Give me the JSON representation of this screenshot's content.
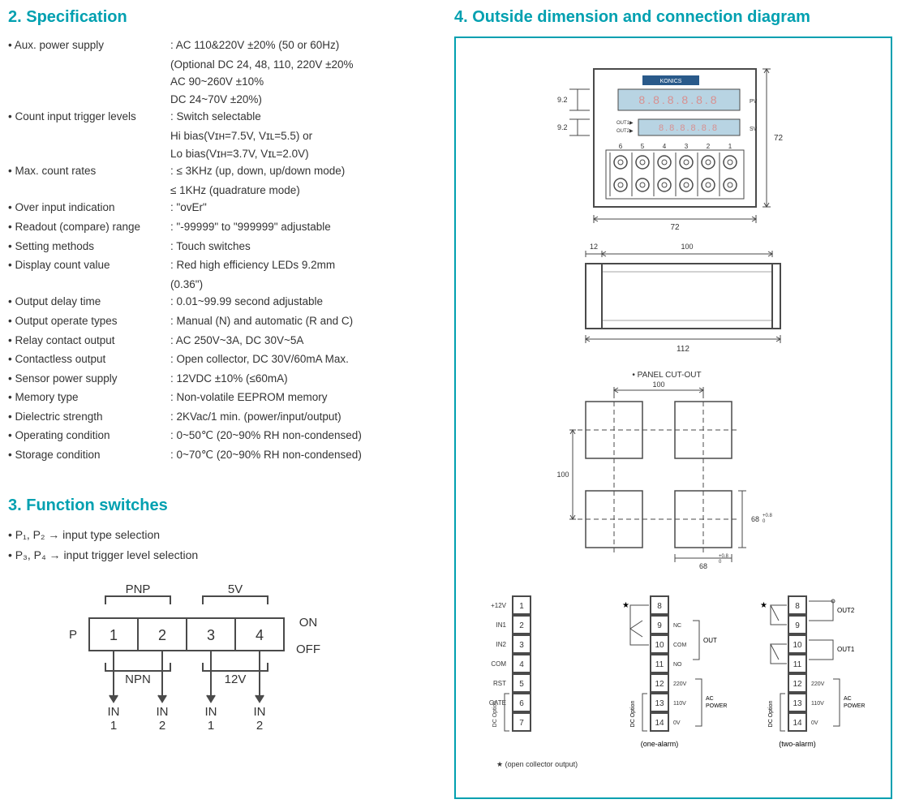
{
  "colors": {
    "heading": "#00a0b0",
    "text": "#333333",
    "border": "#00a0b0",
    "line": "#4a4a4a",
    "display": "#b8d4e3",
    "redBox": "#d89090"
  },
  "section2": {
    "title": "2. Specification",
    "rows": [
      {
        "label": "• Aux. power supply",
        "value": ": AC 110&220V ±20% (50 or 60Hz)",
        "sub": [
          "  (Optional DC 24, 48, 110, 220V ±20%",
          "   AC 90~260V ±10%",
          "   DC 24~70V ±20%)"
        ]
      },
      {
        "label": "• Count input trigger levels",
        "value": ": Switch selectable",
        "sub": [
          "  Hi bias(Vɪʜ=7.5V, Vɪʟ=5.5) or",
          "  Lo bias(Vɪʜ=3.7V, Vɪʟ=2.0V)"
        ]
      },
      {
        "label": "• Max. count rates",
        "value": ": ≤ 3KHz (up, down, up/down mode)",
        "sub": [
          "  ≤ 1KHz (quadrature mode)"
        ]
      },
      {
        "label": "• Over input indication",
        "value": ": \"ovEr\""
      },
      {
        "label": "• Readout (compare) range",
        "value": ": \"-99999\" to \"999999\" adjustable"
      },
      {
        "label": "• Setting methods",
        "value": ": Touch switches"
      },
      {
        "label": "• Display count value",
        "value": ": Red high efficiency LEDs 9.2mm",
        "sub": [
          "  (0.36\")"
        ]
      },
      {
        "label": "• Output delay time",
        "value": ": 0.01~99.99 second adjustable"
      },
      {
        "label": "• Output operate types",
        "value": ": Manual (N) and automatic (R and C)"
      },
      {
        "label": "• Relay contact output",
        "value": ": AC 250V~3A, DC 30V~5A"
      },
      {
        "label": "• Contactless output",
        "value": ": Open collector, DC 30V/60mA Max."
      },
      {
        "label": "• Sensor power supply",
        "value": ": 12VDC ±10% (≤60mA)"
      },
      {
        "label": "• Memory type",
        "value": ": Non-volatile EEPROM memory"
      },
      {
        "label": "• Dielectric strength",
        "value": ": 2KVac/1 min. (power/input/output)"
      },
      {
        "label": "• Operating condition",
        "value": ": 0~50℃ (20~90% RH non-condensed)"
      },
      {
        "label": "• Storage condition",
        "value": ": 0~70℃ (20~90% RH non-condensed)"
      }
    ]
  },
  "section3": {
    "title": "3. Function switches",
    "lines": [
      "• P₁, P₂ → input type selection",
      "• P₃, P₄ → input trigger level selection"
    ],
    "switch": {
      "topLabels": [
        "PNP",
        "5V"
      ],
      "leftLabel": "P",
      "cells": [
        "1",
        "2",
        "3",
        "4"
      ],
      "rightOn": "ON",
      "rightOff": "OFF",
      "midLabels": [
        "NPN",
        "12V"
      ],
      "bottomLabels": [
        "IN\n1",
        "IN\n2",
        "IN\n1",
        "IN\n2"
      ]
    }
  },
  "section4": {
    "title": "4. Outside dimension and connection diagram",
    "front": {
      "width": "72",
      "height": "72",
      "dispH": "9.2",
      "out1": "OUT1▶",
      "out2": "OUT2▶",
      "pv": "PV",
      "sv": "SV",
      "brand": "KONICS",
      "colNums": [
        "6",
        "5",
        "4",
        "3",
        "2",
        "1"
      ]
    },
    "side": {
      "outer": "112",
      "inner": "100",
      "flange": "12"
    },
    "cutout": {
      "title": "• PANEL CUT-OUT",
      "dim100": "100",
      "dim68": "68",
      "tol": "+0.8\n 0"
    },
    "terminals": {
      "left": {
        "labels": [
          "+12V",
          "IN1",
          "IN2",
          "COM",
          "RST",
          "GATE",
          ""
        ],
        "nums": [
          "1",
          "2",
          "3",
          "4",
          "5",
          "6",
          "7"
        ],
        "dcopt": "DC Option"
      },
      "mid": {
        "nums": [
          "8",
          "9",
          "10",
          "11",
          "12",
          "13",
          "14"
        ],
        "rlabels": [
          "",
          "NC",
          "COM",
          "NO",
          "220V",
          "110V",
          "0V"
        ],
        "out": "OUT",
        "acpower": "AC\nPOWER",
        "title": "(one-alarm)"
      },
      "right": {
        "nums": [
          "8",
          "9",
          "10",
          "11",
          "12",
          "13",
          "14"
        ],
        "rlabels": [
          "",
          "",
          "",
          "",
          "220V",
          "110V",
          "0V"
        ],
        "out1": "OUT1",
        "out2": "OUT2",
        "acpower": "AC\nPOWER",
        "title": "(two-alarm)"
      },
      "note": "★ (open collector output)"
    }
  }
}
